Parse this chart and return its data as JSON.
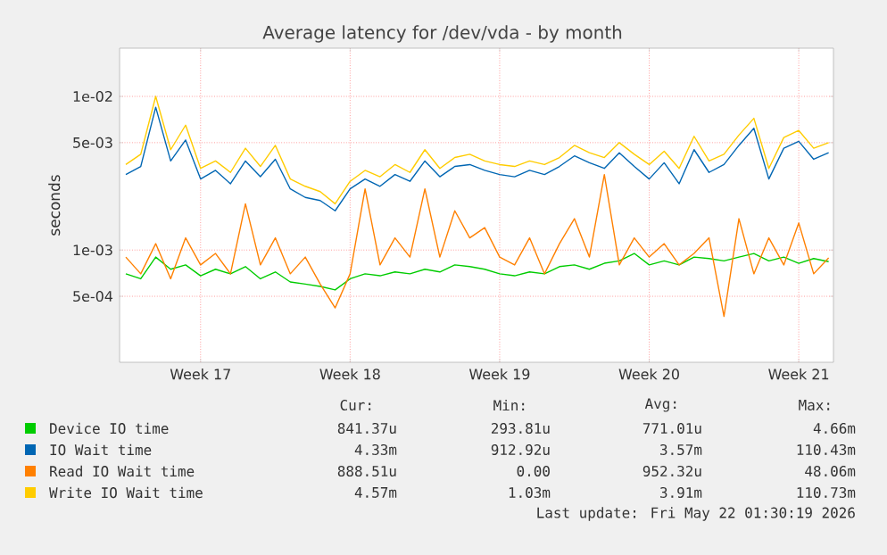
{
  "chart_data": {
    "type": "line",
    "title": "Average latency for /dev/vda - by month",
    "ylabel": "seconds",
    "log": "y",
    "grid": true,
    "legend": "bottom",
    "marker": "none",
    "line_style": "solid",
    "xlim": [
      "2026-04-16T05:00",
      "2026-05-19T15:00"
    ],
    "ylim": [
      0.000186,
      0.0206
    ],
    "xticks": [
      {
        "value": "2026-04-20",
        "label": "Week 17"
      },
      {
        "value": "2026-04-27",
        "label": "Week 18"
      },
      {
        "value": "2026-05-04",
        "label": "Week 19"
      },
      {
        "value": "2026-05-11",
        "label": "Week 20"
      },
      {
        "value": "2026-05-18",
        "label": "Week 21"
      }
    ],
    "yticks": [
      {
        "value": 0.0005,
        "label": "5e-04"
      },
      {
        "value": 0.001,
        "label": "1e-03"
      },
      {
        "value": 0.005,
        "label": "5e-03"
      },
      {
        "value": 0.01,
        "label": "1e-02"
      }
    ],
    "x": [
      "2026-04-16T12:00",
      "2026-04-17T04:48",
      "2026-04-17T21:36",
      "2026-04-18T14:24",
      "2026-04-19T07:12",
      "2026-04-20T00:00",
      "2026-04-20T16:48",
      "2026-04-21T09:36",
      "2026-04-22T02:24",
      "2026-04-22T19:12",
      "2026-04-23T12:00",
      "2026-04-24T04:48",
      "2026-04-24T21:36",
      "2026-04-25T14:24",
      "2026-04-26T07:12",
      "2026-04-27T00:00",
      "2026-04-27T16:48",
      "2026-04-28T09:36",
      "2026-04-29T02:24",
      "2026-04-29T19:12",
      "2026-04-30T12:00",
      "2026-05-01T04:48",
      "2026-05-01T21:36",
      "2026-05-02T14:24",
      "2026-05-03T07:12",
      "2026-05-04T00:00",
      "2026-05-04T16:48",
      "2026-05-05T09:36",
      "2026-05-06T02:24",
      "2026-05-06T19:12",
      "2026-05-07T12:00",
      "2026-05-08T04:48",
      "2026-05-08T21:36",
      "2026-05-09T14:24",
      "2026-05-10T07:12",
      "2026-05-11T00:00",
      "2026-05-11T16:48",
      "2026-05-12T09:36",
      "2026-05-13T02:24",
      "2026-05-13T19:12",
      "2026-05-14T12:00",
      "2026-05-15T04:48",
      "2026-05-15T21:36",
      "2026-05-16T14:24",
      "2026-05-17T07:12",
      "2026-05-18T00:00",
      "2026-05-18T16:48",
      "2026-05-19T09:36"
    ],
    "series": [
      {
        "name": "Device IO time",
        "color": "#00cc00",
        "values": [
          0.0007,
          0.00065,
          0.0009,
          0.00075,
          0.0008,
          0.00068,
          0.00075,
          0.0007,
          0.00078,
          0.00065,
          0.00072,
          0.00062,
          0.0006,
          0.00058,
          0.00055,
          0.00065,
          0.0007,
          0.00068,
          0.00072,
          0.0007,
          0.00075,
          0.00072,
          0.0008,
          0.00078,
          0.00075,
          0.0007,
          0.00068,
          0.00072,
          0.0007,
          0.00078,
          0.0008,
          0.00075,
          0.00082,
          0.00085,
          0.00095,
          0.0008,
          0.00085,
          0.0008,
          0.0009,
          0.00088,
          0.00085,
          0.0009,
          0.00095,
          0.00085,
          0.0009,
          0.00082,
          0.00088,
          0.00084
        ]
      },
      {
        "name": "IO Wait time",
        "color": "#0066b3",
        "values": [
          0.0031,
          0.0035,
          0.0085,
          0.0038,
          0.0052,
          0.0029,
          0.0033,
          0.0027,
          0.0038,
          0.003,
          0.0039,
          0.0025,
          0.0022,
          0.0021,
          0.0018,
          0.0025,
          0.0029,
          0.0026,
          0.0031,
          0.0028,
          0.0038,
          0.003,
          0.0035,
          0.0036,
          0.0033,
          0.0031,
          0.003,
          0.0033,
          0.0031,
          0.0035,
          0.0041,
          0.0037,
          0.0034,
          0.0043,
          0.0035,
          0.0029,
          0.0037,
          0.0027,
          0.0045,
          0.0032,
          0.0036,
          0.0048,
          0.0062,
          0.0029,
          0.0046,
          0.0051,
          0.0039,
          0.0043
        ]
      },
      {
        "name": "Read IO Wait time",
        "color": "#ff8000",
        "values": [
          0.0009,
          0.0007,
          0.0011,
          0.00065,
          0.0012,
          0.0008,
          0.00095,
          0.0007,
          0.002,
          0.0008,
          0.0012,
          0.0007,
          0.0009,
          0.0006,
          0.00042,
          0.0007,
          0.0025,
          0.0008,
          0.0012,
          0.0009,
          0.0025,
          0.0009,
          0.0018,
          0.0012,
          0.0014,
          0.0009,
          0.0008,
          0.0012,
          0.0007,
          0.0011,
          0.0016,
          0.0009,
          0.0031,
          0.0008,
          0.0012,
          0.0009,
          0.0011,
          0.0008,
          0.00095,
          0.0012,
          0.00037,
          0.0016,
          0.0007,
          0.0012,
          0.0008,
          0.0015,
          0.0007,
          0.00089
        ]
      },
      {
        "name": "Write IO Wait time",
        "color": "#ffcc00",
        "values": [
          0.0036,
          0.0042,
          0.01,
          0.0045,
          0.0065,
          0.0034,
          0.0038,
          0.0032,
          0.0046,
          0.0035,
          0.0048,
          0.0029,
          0.0026,
          0.0024,
          0.002,
          0.0028,
          0.0033,
          0.003,
          0.0036,
          0.0032,
          0.0045,
          0.0034,
          0.004,
          0.0042,
          0.0038,
          0.0036,
          0.0035,
          0.0038,
          0.0036,
          0.004,
          0.0048,
          0.0043,
          0.004,
          0.005,
          0.0042,
          0.0036,
          0.0044,
          0.0034,
          0.0055,
          0.0038,
          0.0042,
          0.0056,
          0.0072,
          0.0034,
          0.0054,
          0.006,
          0.0046,
          0.005
        ]
      }
    ],
    "annotations": [
      "Cur:",
      "Min:",
      "Avg:",
      "Max:",
      "841.37u",
      "293.81u",
      "771.01u",
      "4.66m",
      "4.33m",
      "912.92u",
      "3.57m",
      "110.43m",
      "888.51u",
      "0.00",
      "952.32u",
      "48.06m",
      "4.57m",
      "1.03m",
      "3.91m",
      "110.73m",
      "Last update: Fri May 22 01:30:19 2026"
    ]
  }
}
